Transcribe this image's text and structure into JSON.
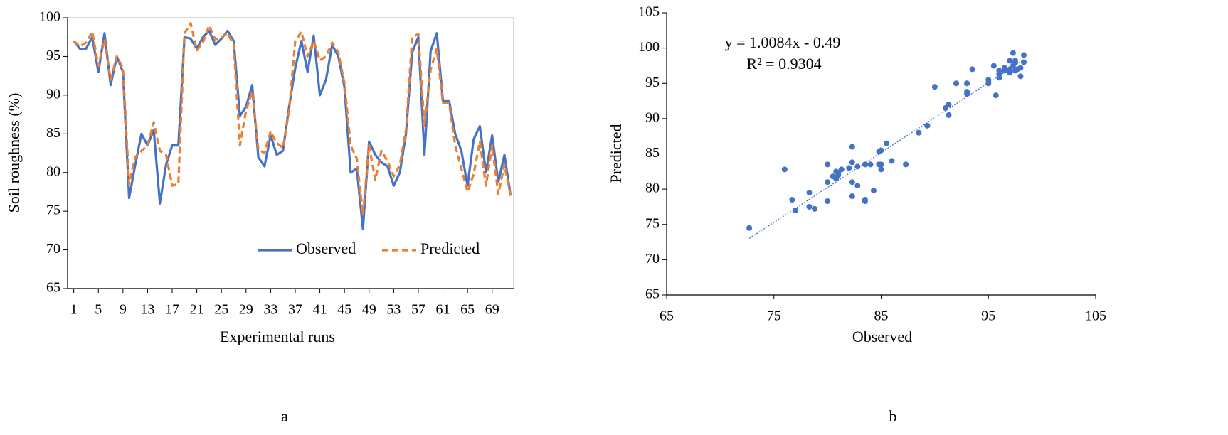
{
  "chart_data": [
    {
      "type": "line",
      "y_label": "Soil roughness (%)",
      "x_label": "Experimental runs",
      "panel_label": "a",
      "x": [
        1,
        2,
        3,
        4,
        5,
        6,
        7,
        8,
        9,
        10,
        11,
        12,
        13,
        14,
        15,
        16,
        17,
        18,
        19,
        20,
        21,
        22,
        23,
        24,
        25,
        26,
        27,
        28,
        29,
        30,
        31,
        32,
        33,
        34,
        35,
        36,
        37,
        38,
        39,
        40,
        41,
        42,
        43,
        44,
        45,
        46,
        47,
        48,
        49,
        50,
        51,
        52,
        53,
        54,
        55,
        56,
        57,
        58,
        59,
        60,
        61,
        62,
        63,
        64,
        65,
        66,
        67,
        68,
        69,
        70,
        71,
        72
      ],
      "series": [
        {
          "name": "Observed",
          "color": "#4472c4",
          "dash": false,
          "values": [
            97,
            96,
            96,
            97.5,
            93,
            98,
            91.3,
            95,
            93,
            76.7,
            81,
            85,
            83.5,
            85.5,
            76,
            81,
            83.5,
            83.5,
            97.5,
            97.3,
            96,
            97.5,
            98.3,
            96.5,
            97.3,
            98.3,
            97,
            87.3,
            88.5,
            91.3,
            82,
            80.8,
            84.8,
            82.3,
            82.8,
            88.5,
            93.5,
            97,
            93,
            97.7,
            90,
            92,
            96.5,
            95,
            91,
            80,
            80.5,
            72.7,
            84,
            82.3,
            81.3,
            80.8,
            78.3,
            80,
            85,
            95.5,
            97.5,
            82.3,
            95.7,
            98,
            89.3,
            89.3,
            85,
            82.8,
            78.3,
            84.3,
            86,
            80,
            84.8,
            78.8,
            82.3,
            77
          ]
        },
        {
          "name": "Predicted",
          "color": "#ed7d31",
          "dash": true,
          "values": [
            97,
            96.3,
            96.8,
            98.2,
            93.8,
            97.2,
            92,
            95,
            93.5,
            78.5,
            82,
            82.8,
            83.5,
            86.5,
            82.8,
            82.3,
            78.3,
            78.5,
            98,
            99.3,
            95.8,
            96.8,
            99,
            97.2,
            97.5,
            98,
            96.5,
            83.5,
            88,
            90.5,
            83,
            82.5,
            85.3,
            83.8,
            83.2,
            88,
            97,
            98.2,
            95,
            97,
            94.5,
            95,
            96.8,
            95.5,
            91.5,
            83.5,
            81.8,
            74.5,
            83.5,
            79,
            82.8,
            81.5,
            79.5,
            81,
            85.5,
            97.5,
            97.9,
            86,
            93.3,
            96,
            89,
            89,
            83.5,
            80.5,
            77.5,
            79.8,
            84,
            78.3,
            83.5,
            77.2,
            81,
            77
          ]
        }
      ],
      "xlim": [
        0,
        72.5
      ],
      "xticks": [
        1,
        5,
        9,
        13,
        17,
        21,
        25,
        29,
        33,
        37,
        41,
        45,
        49,
        53,
        57,
        61,
        65,
        69
      ],
      "ylim": [
        65,
        100
      ],
      "yticks": [
        65,
        70,
        75,
        80,
        85,
        90,
        95,
        100
      ],
      "legend": "lower right"
    },
    {
      "type": "scatter",
      "y_label": "Predicted",
      "x_label": "Observed",
      "panel_label": "b",
      "color": "#4472c4",
      "trendline": true,
      "annotations": [
        "y = 1.0084x - 0.49",
        "R² = 0.9304"
      ],
      "x": [
        97,
        96,
        96,
        97.5,
        93,
        98,
        91.3,
        95,
        93,
        76.7,
        81,
        85,
        83.5,
        85.5,
        76,
        81,
        83.5,
        83.5,
        97.5,
        97.3,
        96,
        97.5,
        98.3,
        96.5,
        97.3,
        98.3,
        97,
        87.3,
        88.5,
        91.3,
        82,
        80.8,
        84.8,
        82.3,
        82.8,
        88.5,
        93.5,
        97,
        93,
        97.7,
        90,
        92,
        96.5,
        95,
        91,
        80,
        80.5,
        72.7,
        84,
        82.3,
        81.3,
        80.8,
        78.3,
        80,
        85,
        95.5,
        97.5,
        82.3,
        95.7,
        98,
        89.3,
        89.3,
        85,
        82.8,
        78.3,
        84.3,
        86,
        80,
        84.8,
        78.8,
        82.3,
        77
      ],
      "values": [
        97,
        96.3,
        96.8,
        98.2,
        93.8,
        97.2,
        92,
        95,
        93.5,
        78.5,
        82,
        82.8,
        83.5,
        86.5,
        82.8,
        82.3,
        78.3,
        78.5,
        98,
        99.3,
        95.8,
        96.8,
        99,
        97.2,
        97.5,
        98,
        96.5,
        83.5,
        88,
        90.5,
        83,
        82.5,
        85.3,
        83.8,
        83.2,
        88,
        97,
        98.2,
        95,
        97,
        94.5,
        95,
        96.8,
        95.5,
        91.5,
        83.5,
        81.8,
        74.5,
        83.5,
        79,
        82.8,
        81.5,
        79.5,
        81,
        85.5,
        97.5,
        97.9,
        86,
        93.3,
        96,
        89,
        89,
        83.5,
        80.5,
        77.5,
        79.8,
        84,
        78.3,
        83.5,
        77.2,
        81,
        77
      ],
      "xlim": [
        65,
        105
      ],
      "xticks": [
        65,
        75,
        85,
        95,
        105
      ],
      "ylim": [
        65,
        105
      ],
      "yticks": [
        65,
        70,
        75,
        80,
        85,
        90,
        95,
        100,
        105
      ]
    }
  ]
}
